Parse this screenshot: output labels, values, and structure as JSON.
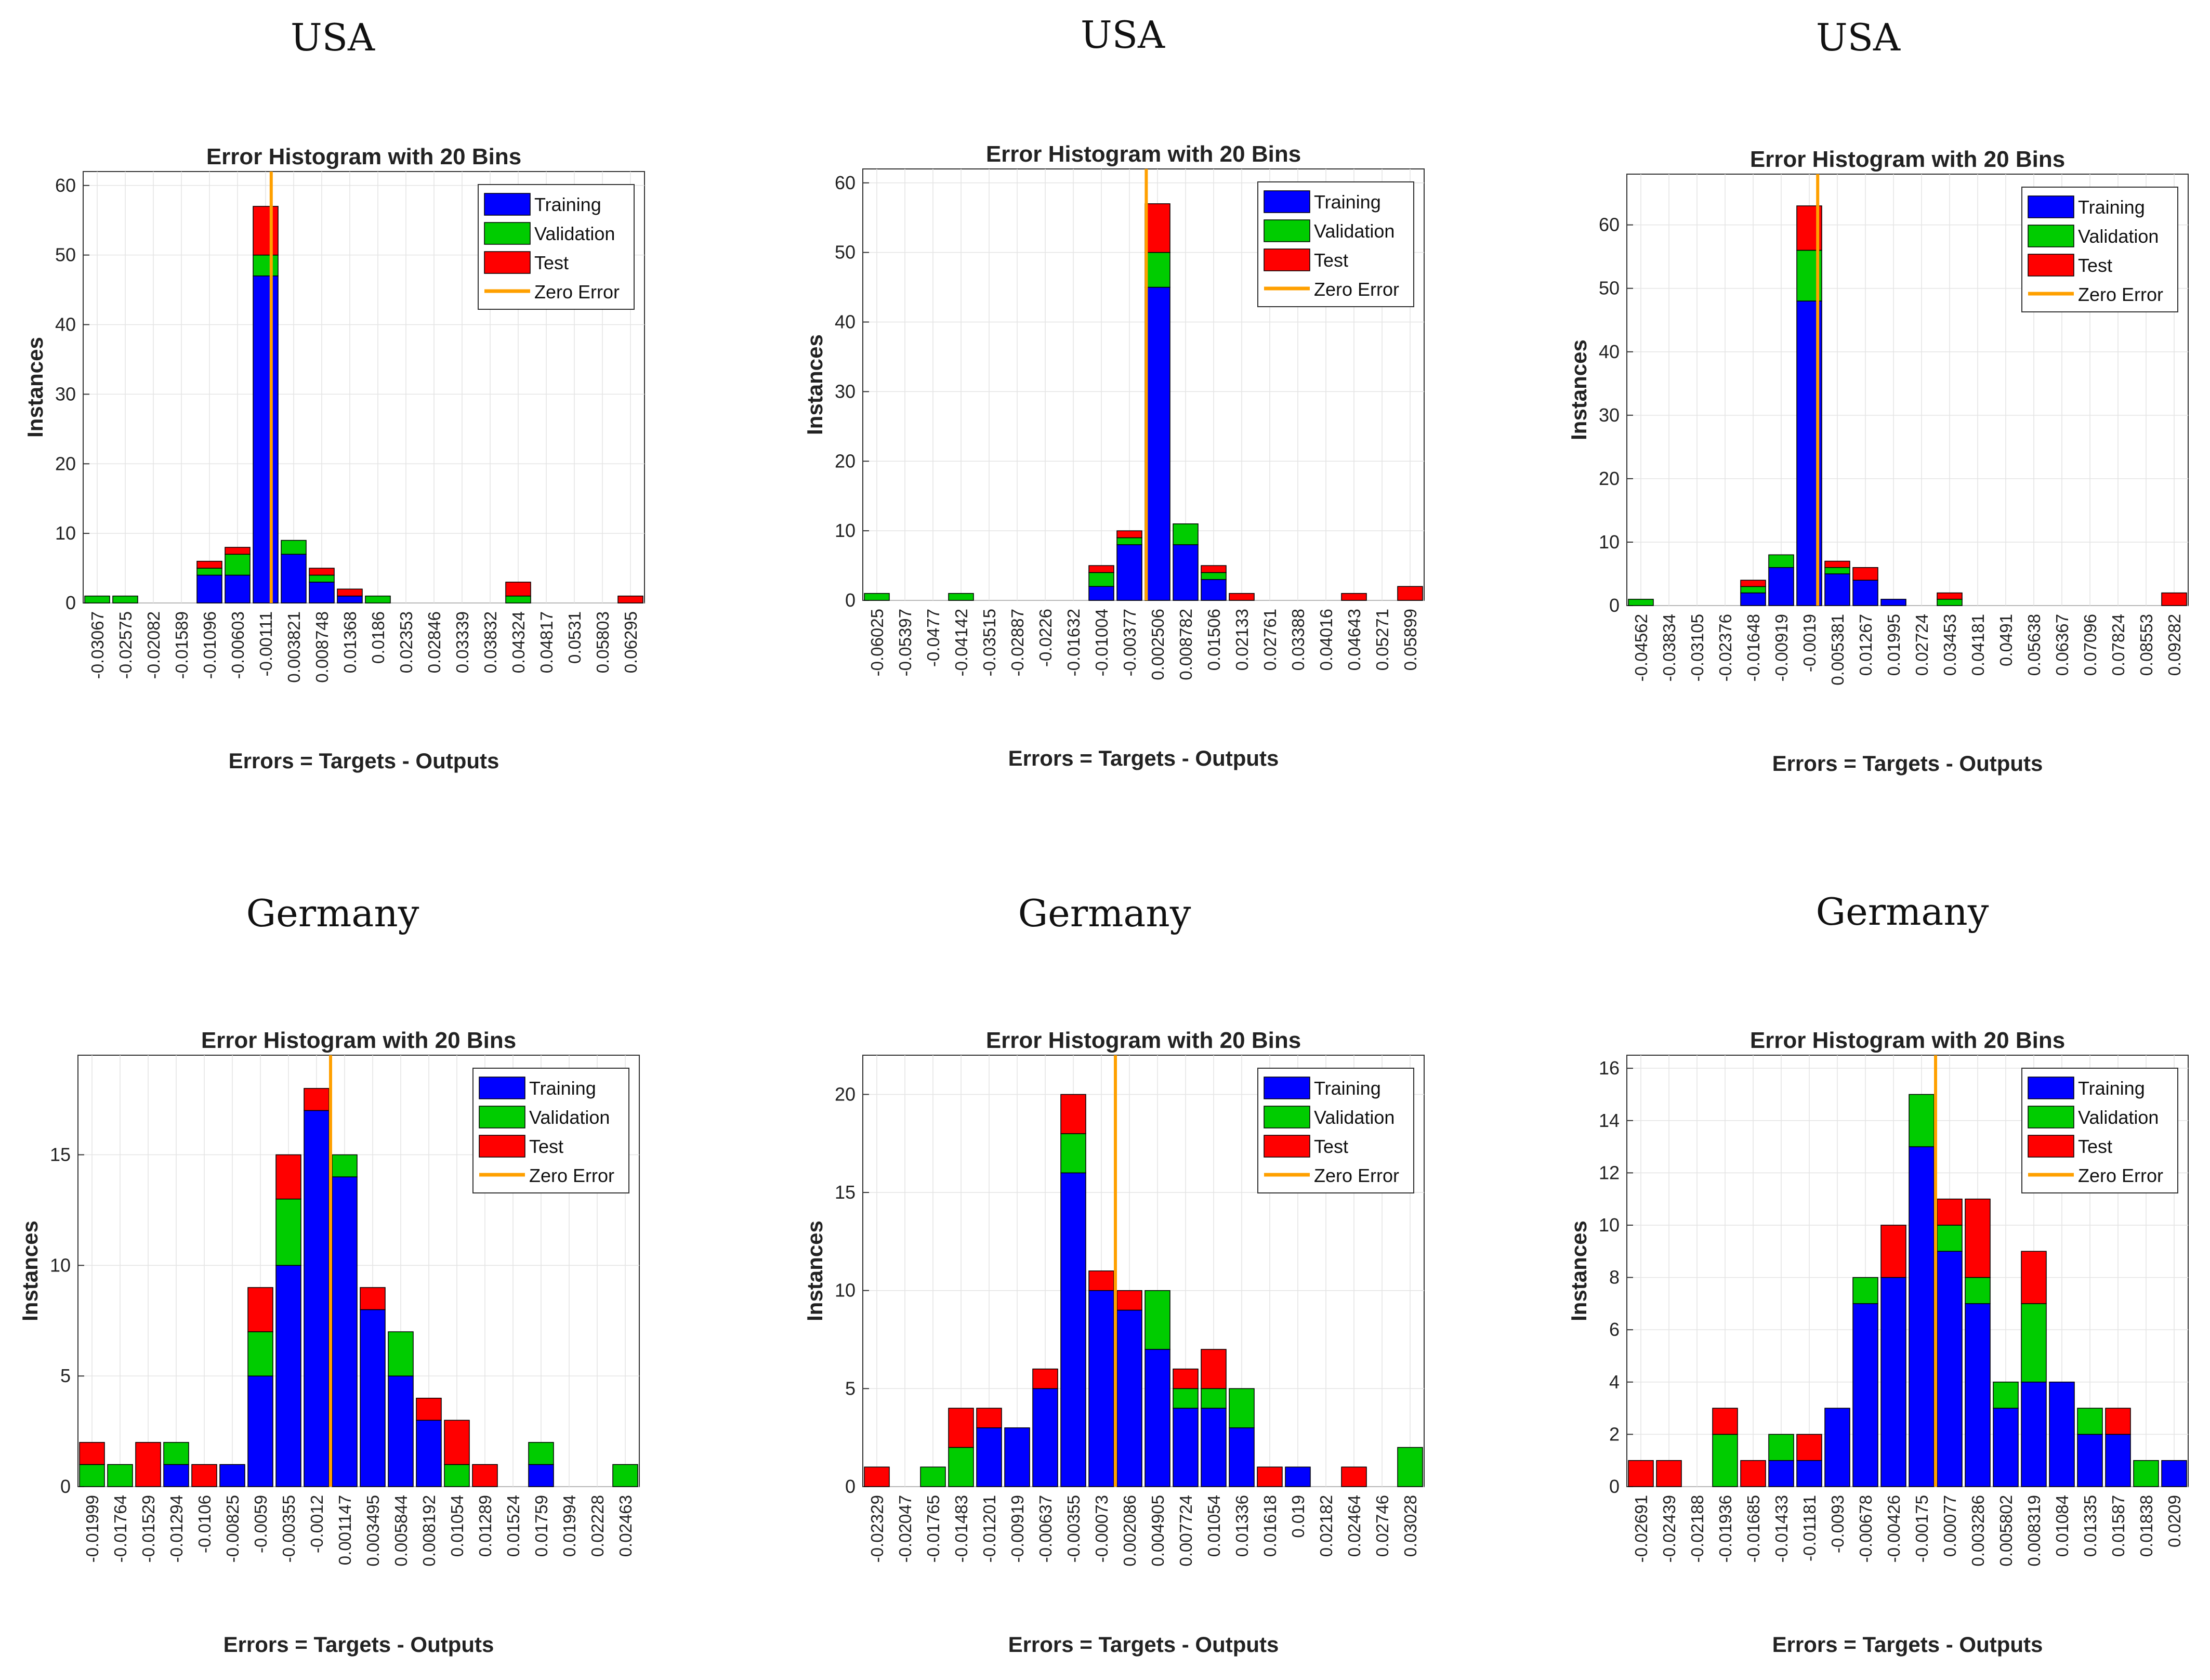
{
  "legend_labels": {
    "training": "Training",
    "validation": "Validation",
    "test": "Test",
    "zero": "Zero Error"
  },
  "colors": {
    "training": "#0000ff",
    "validation": "#00cc00",
    "test": "#ff0000",
    "zero": "#ffa000"
  },
  "chart_data": [
    {
      "country": "USA",
      "type": "bar",
      "stacked": true,
      "title": "Error Histogram with 20 Bins",
      "xlabel": "Errors = Targets - Outputs",
      "ylabel": "Instances",
      "ylim": [
        0,
        62
      ],
      "yticks": [
        0,
        10,
        20,
        30,
        40,
        50,
        60
      ],
      "categories": [
        "-0.03067",
        "-0.02575",
        "-0.02082",
        "-0.01589",
        "-0.01096",
        "-0.00603",
        "-0.00111",
        "0.003821",
        "0.008748",
        "0.01368",
        "0.0186",
        "0.02353",
        "0.02846",
        "0.03339",
        "0.03832",
        "0.04324",
        "0.04817",
        "0.0531",
        "0.05803",
        "0.06295"
      ],
      "zero_bin": 6.2,
      "series": [
        {
          "name": "Training",
          "values": [
            0,
            0,
            0,
            0,
            4,
            4,
            47,
            7,
            3,
            1,
            0,
            0,
            0,
            0,
            0,
            0,
            0,
            0,
            0,
            0
          ]
        },
        {
          "name": "Validation",
          "values": [
            1,
            1,
            0,
            0,
            1,
            3,
            3,
            2,
            1,
            0,
            1,
            0,
            0,
            0,
            0,
            1,
            0,
            0,
            0,
            0
          ]
        },
        {
          "name": "Test",
          "values": [
            0,
            0,
            0,
            0,
            1,
            1,
            7,
            0,
            1,
            1,
            0,
            0,
            0,
            0,
            0,
            2,
            0,
            0,
            0,
            1
          ]
        }
      ]
    },
    {
      "country": "USA",
      "type": "bar",
      "stacked": true,
      "title": "Error Histogram with 20 Bins",
      "xlabel": "Errors = Targets - Outputs",
      "ylabel": "Instances",
      "ylim": [
        0,
        62
      ],
      "yticks": [
        0,
        10,
        20,
        30,
        40,
        50,
        60
      ],
      "categories": [
        "-0.06025",
        "-0.05397",
        "-0.0477",
        "-0.04142",
        "-0.03515",
        "-0.02887",
        "-0.0226",
        "-0.01632",
        "-0.01004",
        "-0.00377",
        "0.002506",
        "0.008782",
        "0.01506",
        "0.02133",
        "0.02761",
        "0.03388",
        "0.04016",
        "0.04643",
        "0.05271",
        "0.05899"
      ],
      "zero_bin": 9.6,
      "series": [
        {
          "name": "Training",
          "values": [
            0,
            0,
            0,
            0,
            0,
            0,
            0,
            0,
            2,
            8,
            45,
            8,
            3,
            0,
            0,
            0,
            0,
            0,
            0,
            0
          ]
        },
        {
          "name": "Validation",
          "values": [
            1,
            0,
            0,
            1,
            0,
            0,
            0,
            0,
            2,
            1,
            5,
            3,
            1,
            0,
            0,
            0,
            0,
            0,
            0,
            0
          ]
        },
        {
          "name": "Test",
          "values": [
            0,
            0,
            0,
            0,
            0,
            0,
            0,
            0,
            1,
            1,
            7,
            0,
            1,
            1,
            0,
            0,
            0,
            1,
            0,
            2
          ]
        }
      ]
    },
    {
      "country": "USA",
      "type": "bar",
      "stacked": true,
      "title": "Error Histogram with 20 Bins",
      "xlabel": "Errors = Targets - Outputs",
      "ylabel": "Instances",
      "ylim": [
        0,
        68
      ],
      "yticks": [
        0,
        10,
        20,
        30,
        40,
        50,
        60
      ],
      "categories": [
        "-0.04562",
        "-0.03834",
        "-0.03105",
        "-0.02376",
        "-0.01648",
        "-0.00919",
        "-0.0019",
        "0.005381",
        "0.01267",
        "0.01995",
        "0.02724",
        "0.03453",
        "0.04181",
        "0.0491",
        "0.05638",
        "0.06367",
        "0.07096",
        "0.07824",
        "0.08553",
        "0.09282"
      ],
      "zero_bin": 6.3,
      "series": [
        {
          "name": "Training",
          "values": [
            0,
            0,
            0,
            0,
            2,
            6,
            48,
            5,
            4,
            1,
            0,
            0,
            0,
            0,
            0,
            0,
            0,
            0,
            0,
            0
          ]
        },
        {
          "name": "Validation",
          "values": [
            1,
            0,
            0,
            0,
            1,
            2,
            8,
            1,
            0,
            0,
            0,
            1,
            0,
            0,
            0,
            0,
            0,
            0,
            0,
            0
          ]
        },
        {
          "name": "Test",
          "values": [
            0,
            0,
            0,
            0,
            1,
            0,
            7,
            1,
            2,
            0,
            0,
            1,
            0,
            0,
            0,
            0,
            0,
            0,
            0,
            2
          ]
        }
      ]
    },
    {
      "country": "Germany",
      "type": "bar",
      "stacked": true,
      "title": "Error Histogram with 20 Bins",
      "xlabel": "Errors = Targets - Outputs",
      "ylabel": "Instances",
      "ylim": [
        0,
        19.5
      ],
      "yticks": [
        0,
        5,
        10,
        15
      ],
      "categories": [
        "-0.01999",
        "-0.01764",
        "-0.01529",
        "-0.01294",
        "-0.0106",
        "-0.00825",
        "-0.0059",
        "-0.00355",
        "-0.0012",
        "0.001147",
        "0.003495",
        "0.005844",
        "0.008192",
        "0.01054",
        "0.01289",
        "0.01524",
        "0.01759",
        "0.01994",
        "0.02228",
        "0.02463"
      ],
      "zero_bin": 8.5,
      "series": [
        {
          "name": "Training",
          "values": [
            0,
            0,
            0,
            1,
            0,
            1,
            5,
            10,
            17,
            14,
            8,
            5,
            3,
            0,
            0,
            0,
            1,
            0,
            0,
            0
          ]
        },
        {
          "name": "Validation",
          "values": [
            1,
            1,
            0,
            1,
            0,
            0,
            2,
            3,
            0,
            1,
            0,
            2,
            0,
            1,
            0,
            0,
            1,
            0,
            0,
            1
          ]
        },
        {
          "name": "Test",
          "values": [
            1,
            0,
            2,
            0,
            1,
            0,
            2,
            2,
            1,
            0,
            1,
            0,
            1,
            2,
            1,
            0,
            0,
            0,
            0,
            0
          ]
        }
      ]
    },
    {
      "country": "Germany",
      "type": "bar",
      "stacked": true,
      "title": "Error Histogram with 20 Bins",
      "xlabel": "Errors = Targets - Outputs",
      "ylabel": "Instances",
      "ylim": [
        0,
        22
      ],
      "yticks": [
        0,
        5,
        10,
        15,
        20
      ],
      "categories": [
        "-0.02329",
        "-0.02047",
        "-0.01765",
        "-0.01483",
        "-0.01201",
        "-0.00919",
        "-0.00637",
        "-0.00355",
        "-0.00073",
        "0.002086",
        "0.004905",
        "0.007724",
        "0.01054",
        "0.01336",
        "0.01618",
        "0.019",
        "0.02182",
        "0.02464",
        "0.02746",
        "0.03028"
      ],
      "zero_bin": 8.5,
      "series": [
        {
          "name": "Training",
          "values": [
            0,
            0,
            0,
            0,
            3,
            3,
            5,
            16,
            10,
            9,
            7,
            4,
            4,
            3,
            0,
            1,
            0,
            0,
            0,
            0
          ]
        },
        {
          "name": "Validation",
          "values": [
            0,
            0,
            1,
            2,
            0,
            0,
            0,
            2,
            0,
            0,
            3,
            1,
            1,
            2,
            0,
            0,
            0,
            0,
            0,
            2
          ]
        },
        {
          "name": "Test",
          "values": [
            1,
            0,
            0,
            2,
            1,
            0,
            1,
            2,
            1,
            1,
            0,
            1,
            2,
            0,
            1,
            0,
            0,
            1,
            0,
            0
          ]
        }
      ]
    },
    {
      "country": "Germany",
      "type": "bar",
      "stacked": true,
      "title": "Error Histogram with 20 Bins",
      "xlabel": "Errors = Targets - Outputs",
      "ylabel": "Instances",
      "ylim": [
        0,
        16.5
      ],
      "yticks": [
        0,
        2,
        4,
        6,
        8,
        10,
        12,
        14,
        16
      ],
      "categories": [
        "-0.02691",
        "-0.02439",
        "-0.02188",
        "-0.01936",
        "-0.01685",
        "-0.01433",
        "-0.01181",
        "-0.0093",
        "-0.00678",
        "-0.00426",
        "-0.00175",
        "0.00077",
        "0.003286",
        "0.005802",
        "0.008319",
        "0.01084",
        "0.01335",
        "0.01587",
        "0.01838",
        "0.0209"
      ],
      "zero_bin": 10.5,
      "series": [
        {
          "name": "Training",
          "values": [
            0,
            0,
            0,
            0,
            0,
            1,
            1,
            3,
            7,
            8,
            13,
            9,
            7,
            3,
            4,
            4,
            2,
            2,
            0,
            1
          ]
        },
        {
          "name": "Validation",
          "values": [
            0,
            0,
            0,
            2,
            0,
            1,
            0,
            0,
            1,
            0,
            2,
            1,
            1,
            1,
            3,
            0,
            1,
            0,
            1,
            0
          ]
        },
        {
          "name": "Test",
          "values": [
            1,
            1,
            0,
            1,
            1,
            0,
            1,
            0,
            0,
            2,
            0,
            1,
            3,
            0,
            2,
            0,
            0,
            1,
            0,
            0
          ]
        }
      ]
    }
  ]
}
